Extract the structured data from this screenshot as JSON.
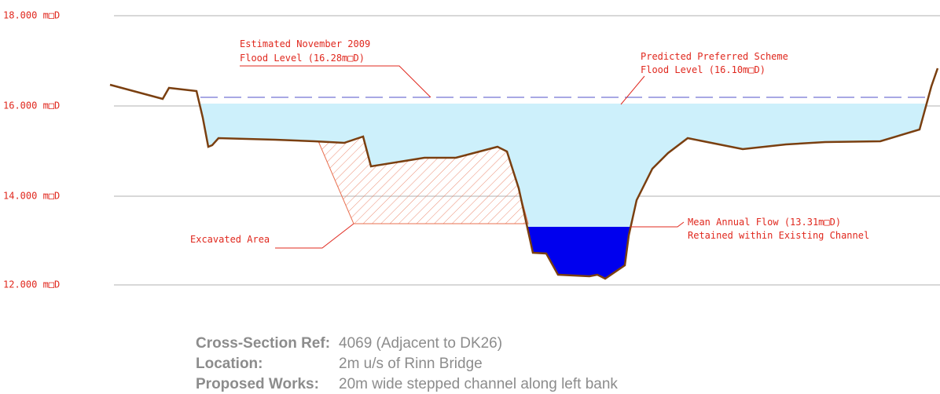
{
  "axis": {
    "levels": [
      "18.000 m□D",
      "16.000 m□D",
      "14.000 m□D",
      "12.000 m□D"
    ]
  },
  "annotations": {
    "flood_2009": [
      "Estimated November 2009",
      "Flood Level (16.28m□D)"
    ],
    "scheme_flood": [
      "Predicted Preferred Scheme",
      "Flood Level (16.10m□D)"
    ],
    "excavated": "Excavated Area",
    "mean_flow": [
      "Mean Annual Flow (13.31m□D)",
      "Retained within Existing Channel"
    ]
  },
  "info": {
    "rows": [
      [
        "Cross-Section Ref:",
        "4069 (Adjacent to DK26)"
      ],
      [
        "Location:",
        "2m u/s of Rinn Bridge"
      ],
      [
        "Proposed Works:",
        "20m wide stepped channel along left bank"
      ]
    ]
  }
}
